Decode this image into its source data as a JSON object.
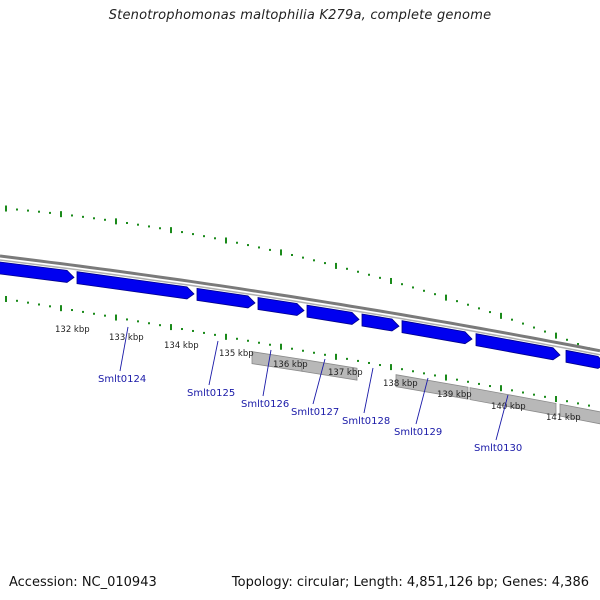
{
  "title": "Stenotrophomonas maltophilia K279a, complete genome",
  "footer": {
    "accession": "Accession: NC_010943",
    "summary": "Topology: circular; Length: 4,851,126 bp; Genes: 4,386"
  },
  "scale": {
    "unit": "kbp",
    "labels": [
      "132 kbp",
      "133 kbp",
      "134 kbp",
      "135 kbp",
      "136 kbp",
      "137 kbp",
      "138 kbp",
      "139 kbp",
      "140 kbp",
      "141 kbp"
    ]
  },
  "genes": [
    {
      "label": "Smlt0124"
    },
    {
      "label": "Smlt0125"
    },
    {
      "label": "Smlt0126"
    },
    {
      "label": "Smlt0127"
    },
    {
      "label": "Smlt0128"
    },
    {
      "label": "Smlt0129"
    },
    {
      "label": "Smlt0130"
    }
  ],
  "colors": {
    "cds": "#0000f0",
    "rna_bar": "#b8b8b8",
    "backbone": "#7a7a7a",
    "gc_dots": "#1a8a1a",
    "gene_label": "#1a1aa8",
    "tick_text": "#222222"
  }
}
